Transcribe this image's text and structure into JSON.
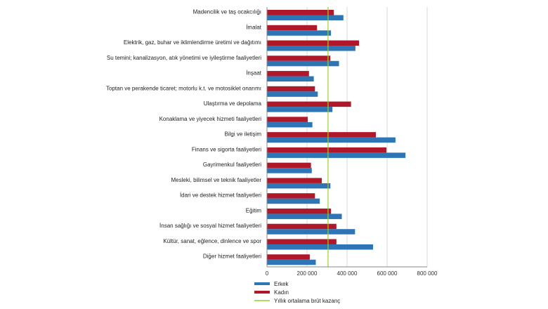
{
  "chart_data": {
    "type": "bar",
    "orientation": "horizontal",
    "categories": [
      "Madencilik ve taş ocakcılığı",
      "İmalat",
      "Elektrik, gaz, buhar ve iklimlendirme üretimi ve dağıtımı",
      "Su temini; kanalizasyon, atık yönetimi ve iyileştirme faaliyetleri",
      "İnşaat",
      "Toptan ve perakende ticaret; motorlu k.t. ve motosiklet onarımı",
      "Ulaştırma ve depolama",
      "Konaklama ve yiyecek hizmeti faaliyetleri",
      "Bilgi ve iletişim",
      "Finans ve sigorta faaliyetleri",
      "Gayrimenkul faaliyetleri",
      "Mesleki, bilimsel ve teknik faaliyetler",
      "İdari ve destek hizmet faaliyetleri",
      "Eğitim",
      "İnsan sağlığı ve sosyal hizmet faaliyetleri",
      "Kültür, sanat, eğlence, dinlence ve spor",
      "Diğer hizmet faaliyetleri"
    ],
    "series": [
      {
        "name": "Erkek",
        "color": "#2e75b6",
        "values": [
          380000,
          318000,
          440000,
          358000,
          232000,
          252000,
          325000,
          225000,
          640000,
          690000,
          222000,
          315000,
          262000,
          372000,
          438000,
          528000,
          242000
        ]
      },
      {
        "name": "Kadın",
        "color": "#b0182a",
        "values": [
          332000,
          248000,
          458000,
          315000,
          208000,
          238000,
          418000,
          202000,
          542000,
          595000,
          218000,
          272000,
          238000,
          318000,
          345000,
          345000,
          212000
        ]
      }
    ],
    "reference_line": {
      "name": "Yıllık ortalama brüt kazanç",
      "color": "#9acd32",
      "value": 305000
    },
    "x_tick_labels": [
      "0",
      "200 000",
      "400 000",
      "600 000",
      "800 000"
    ],
    "x_tick_values": [
      0,
      200000,
      400000,
      600000,
      800000
    ],
    "xlim": [
      0,
      800000
    ],
    "grid": true,
    "legend_position": "bottom-left"
  }
}
